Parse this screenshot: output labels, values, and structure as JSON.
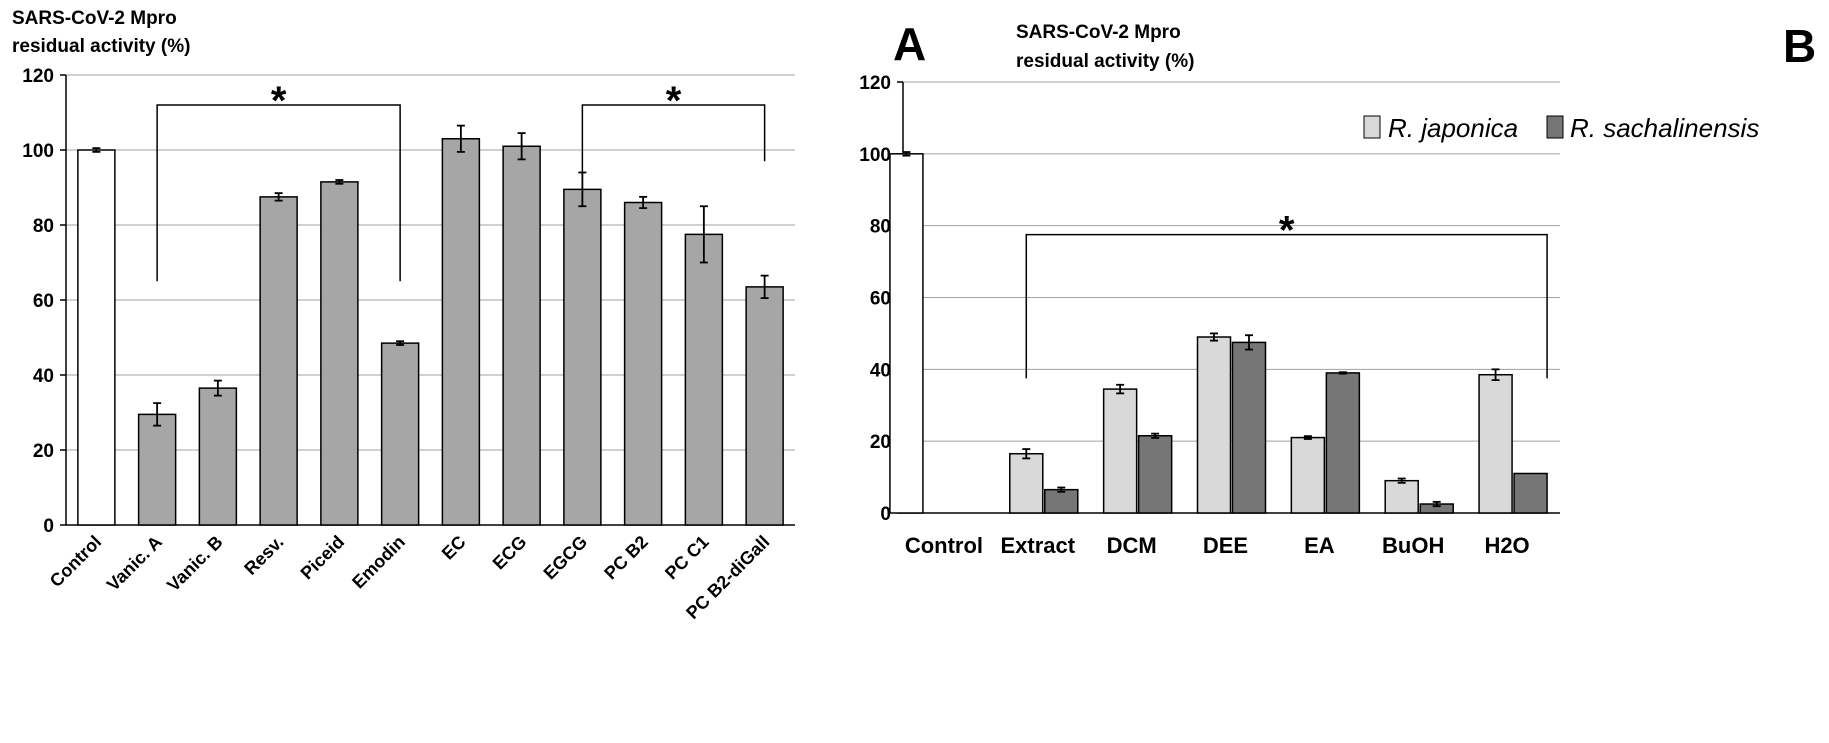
{
  "chart_data": [
    {
      "panel": "A",
      "type": "bar",
      "ylabel": [
        "SARS-CoV-2 Mpro",
        "residual activity (%)"
      ],
      "ylim": [
        0,
        120
      ],
      "yticks": [
        0,
        20,
        40,
        60,
        80,
        100,
        120
      ],
      "grid": true,
      "categories": [
        "Control",
        "Vanic. A",
        "Vanic. B",
        "Resv.",
        "Piceid",
        "Emodin",
        "EC",
        "ECG",
        "EGCG",
        "PC B2",
        "PC C1",
        "PC B2-diGall"
      ],
      "values": [
        100,
        29.5,
        36.5,
        87.5,
        91.5,
        48.5,
        103,
        101,
        89.5,
        86,
        77.5,
        63.5
      ],
      "errors": [
        0.5,
        3,
        2,
        1,
        0.5,
        0.5,
        3.5,
        3.5,
        4.5,
        1.5,
        7.5,
        3
      ],
      "colors": [
        "#ffffff",
        "#a6a6a6",
        "#a6a6a6",
        "#a6a6a6",
        "#a6a6a6",
        "#a6a6a6",
        "#a6a6a6",
        "#a6a6a6",
        "#a6a6a6",
        "#a6a6a6",
        "#a6a6a6",
        "#a6a6a6"
      ],
      "annotations": [
        {
          "text": "*",
          "from": 1,
          "to": 5,
          "bracket_y": 112,
          "left_leg_y": 65,
          "right_leg_y": 65
        },
        {
          "text": "*",
          "from": 8,
          "to": 11,
          "bracket_y": 112,
          "left_leg_y": 94,
          "right_leg_y": 97
        }
      ]
    },
    {
      "panel": "B",
      "type": "bar",
      "ylabel": [
        "SARS-CoV-2 Mpro",
        "residual activity (%)"
      ],
      "ylim": [
        0,
        120
      ],
      "yticks": [
        0,
        20,
        40,
        60,
        80,
        100,
        120
      ],
      "grid": true,
      "categories": [
        "Control",
        "Extract",
        "DCM",
        "DEE",
        "EA",
        "BuOH",
        "H2O"
      ],
      "control_value": 100,
      "control_error": 0.5,
      "series": [
        {
          "name": "R. japonica",
          "color": "#d9d9d9",
          "values": [
            null,
            16.5,
            34.5,
            49,
            21,
            9,
            38.5
          ],
          "errors": [
            null,
            1.3,
            1.2,
            1,
            0.4,
            0.6,
            1.5
          ]
        },
        {
          "name": "R. sachalinensis",
          "color": "#767676",
          "values": [
            null,
            6.5,
            21.5,
            47.5,
            39,
            2.5,
            11
          ],
          "errors": [
            null,
            0.6,
            0.6,
            2,
            0.2,
            0.6,
            0
          ]
        }
      ],
      "legend_position": "top-right",
      "annotations": [
        {
          "text": "*",
          "from": 1,
          "to": 6,
          "bracket_y": 77.5,
          "left_leg_y": 37.5,
          "right_leg_y": 37.5
        }
      ]
    }
  ]
}
